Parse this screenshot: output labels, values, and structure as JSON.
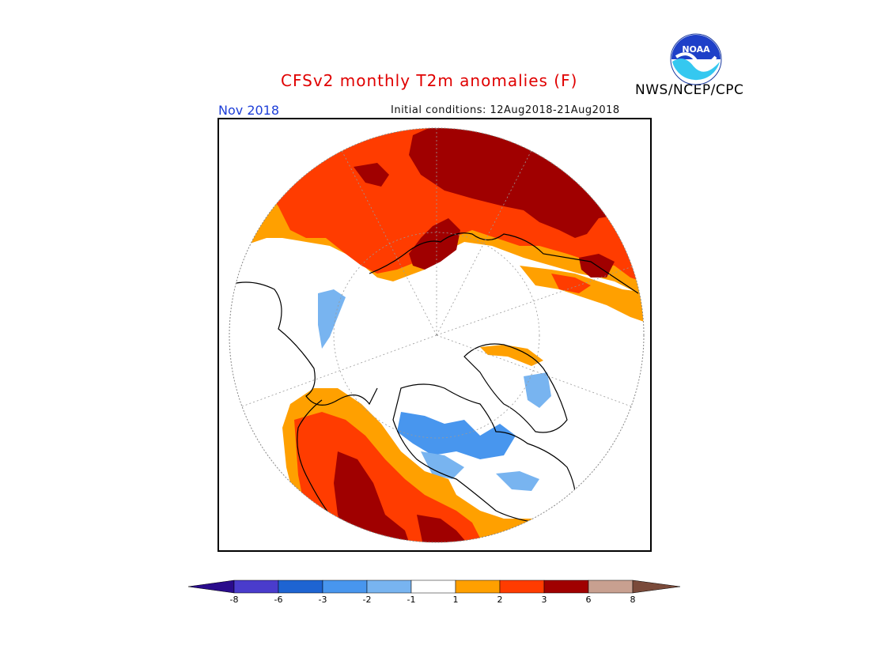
{
  "header": {
    "title": "CFSv2 monthly T2m anomalies (F)",
    "month": "Nov 2018",
    "initial_conditions": "Initial conditions: 12Aug2018-21Aug2018",
    "agency": "NWS/NCEP/CPC",
    "logo_text": "NOAA"
  },
  "colorbar": {
    "labels": [
      "-8",
      "-6",
      "-3",
      "-2",
      "-1",
      "1",
      "2",
      "3",
      "6",
      "8"
    ],
    "colors": [
      "#2a0c8c",
      "#4a3ccc",
      "#1e64d2",
      "#4896ee",
      "#78b4f0",
      "#ffffff",
      "#ffa000",
      "#ff3c00",
      "#a00000",
      "#c8a090",
      "#7a4a3a"
    ]
  },
  "map": {
    "projection": "north-polar-stereographic",
    "colors": {
      "light_blue": "#78b4f0",
      "blue": "#4896ee",
      "orange": "#ffa000",
      "red_orange": "#ff3c00",
      "dark_red": "#a00000"
    }
  }
}
